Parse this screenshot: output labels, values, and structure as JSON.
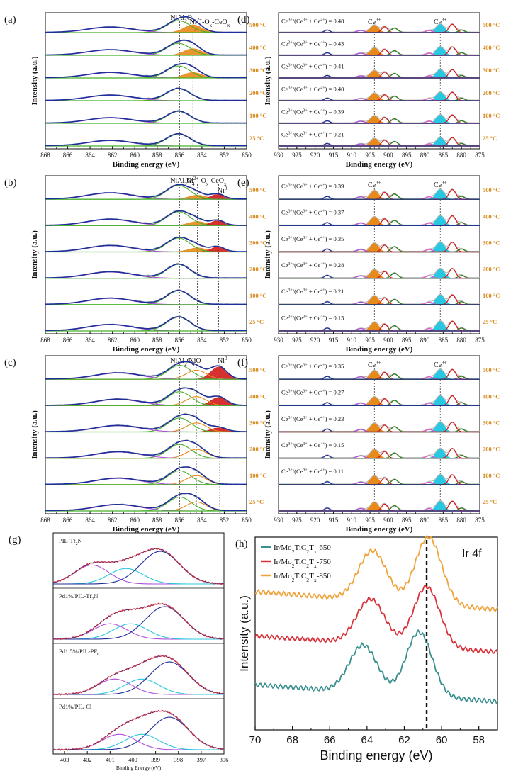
{
  "colors": {
    "blue": "#1f2f9a",
    "purple": "#b04ed8",
    "green": "#46b02a",
    "orange": "#e88a1a",
    "red": "#d21a1a",
    "cyan": "#2ac7e0",
    "gray": "#b8b8b8",
    "darkgreen": "#2e7d1e",
    "pink": "#e356c9",
    "tempLabel": "#d98b1e",
    "teal": "#3a8f8f",
    "crimson": "#d8343c",
    "amber": "#f0a33a"
  },
  "chart_data": [
    {
      "id": "a",
      "type": "line",
      "panel_label": "(a)",
      "xlabel": "Binding energy (eV)",
      "ylabel": "Intensity (a.u.)",
      "xlim": [
        868,
        850
      ],
      "xticks": [
        "868",
        "866",
        "864",
        "862",
        "860",
        "858",
        "856",
        "854",
        "852",
        "850"
      ],
      "annotations": [
        "NiAl2O4",
        "Ni2+-Ox-CeOx"
      ],
      "ref_lines": [
        856.0,
        854.8
      ],
      "series": [
        {
          "name": "500 °C",
          "peaks": [
            856.1,
            854.8,
            862.2
          ]
        },
        {
          "name": "400 °C",
          "peaks": [
            856.1,
            854.8,
            862.2
          ]
        },
        {
          "name": "300 °C",
          "peaks": [
            856.1,
            854.8,
            862.2
          ]
        },
        {
          "name": "200 °C",
          "peaks": [
            856.1,
            862.2
          ]
        },
        {
          "name": "100 °C",
          "peaks": [
            856.1,
            862.2
          ]
        },
        {
          "name": "25 °C",
          "peaks": [
            856.1,
            862.2
          ]
        }
      ]
    },
    {
      "id": "b",
      "type": "line",
      "panel_label": "(b)",
      "xlabel": "Binding energy (eV)",
      "ylabel": "Intensity (a.u.)",
      "xlim": [
        868,
        850
      ],
      "xticks": [
        "868",
        "866",
        "864",
        "862",
        "860",
        "858",
        "856",
        "854",
        "852",
        "850"
      ],
      "annotations": [
        "NiAl2O4",
        "Ni2+-Ox-CeOx",
        "Ni0"
      ],
      "ref_lines": [
        856.0,
        854.4,
        852.5
      ],
      "series": [
        {
          "name": "500 °C",
          "peaks": [
            856.1,
            854.4,
            852.6,
            862.2
          ]
        },
        {
          "name": "400 °C",
          "peaks": [
            856.1,
            854.4,
            852.6,
            862.2
          ]
        },
        {
          "name": "300 °C",
          "peaks": [
            856.1,
            854.4,
            852.6,
            862.2
          ]
        },
        {
          "name": "200 °C",
          "peaks": [
            856.1,
            862.2
          ]
        },
        {
          "name": "100 °C",
          "peaks": [
            856.1,
            862.2
          ]
        },
        {
          "name": "25 °C",
          "peaks": [
            856.1,
            862.2
          ]
        }
      ]
    },
    {
      "id": "c",
      "type": "line",
      "panel_label": "(c)",
      "xlabel": "Binding energy (eV)",
      "ylabel": "Intensity (a.u.)",
      "xlim": [
        868,
        850
      ],
      "xticks": [
        "868",
        "866",
        "864",
        "862",
        "860",
        "858",
        "856",
        "854",
        "852",
        "850"
      ],
      "annotations": [
        "NiAl2O4",
        "NiO",
        "Ni0"
      ],
      "ref_lines": [
        856.0,
        854.5,
        852.4
      ],
      "series": [
        {
          "name": "500 °C",
          "peaks": [
            856.0,
            854.5,
            852.5,
            861.5
          ]
        },
        {
          "name": "400 °C",
          "peaks": [
            856.0,
            854.5,
            852.5,
            861.5
          ]
        },
        {
          "name": "300 °C",
          "peaks": [
            856.0,
            854.5,
            852.5,
            861.5
          ]
        },
        {
          "name": "200 °C",
          "peaks": [
            856.0,
            854.5,
            861.5
          ]
        },
        {
          "name": "100 °C",
          "peaks": [
            856.0,
            854.5,
            861.5
          ]
        },
        {
          "name": "25 °C",
          "peaks": [
            856.0,
            854.5,
            861.5
          ]
        }
      ]
    },
    {
      "id": "d",
      "type": "line",
      "panel_label": "(d)",
      "xlabel": "Binding energy (eV)",
      "ylabel": "Intensity (a.u.)",
      "xlim": [
        930,
        875
      ],
      "xticks": [
        "930",
        "925",
        "920",
        "915",
        "910",
        "905",
        "900",
        "895",
        "890",
        "885",
        "880",
        "875"
      ],
      "annotations": [
        "Ce3+",
        "Ce3+"
      ],
      "ref_lines": [
        903.8,
        885.8
      ],
      "ratio_prefix": "Ce3+/(Ce3+ + Ce4+) = ",
      "series": [
        {
          "name": "500 °C",
          "ratio": "0.48"
        },
        {
          "name": "400 °C",
          "ratio": "0.43"
        },
        {
          "name": "300 °C",
          "ratio": "0.41"
        },
        {
          "name": "200 °C",
          "ratio": "0.40"
        },
        {
          "name": "100 °C",
          "ratio": "0.39"
        },
        {
          "name": "25 °C",
          "ratio": "0.21"
        }
      ]
    },
    {
      "id": "e",
      "type": "line",
      "panel_label": "(e)",
      "xlabel": "Binding energy (eV)",
      "ylabel": "Intensity (a.u.)",
      "xlim": [
        930,
        875
      ],
      "xticks": [
        "930",
        "925",
        "920",
        "915",
        "910",
        "905",
        "900",
        "895",
        "890",
        "885",
        "880",
        "875"
      ],
      "annotations": [
        "Ce3+",
        "Ce3+"
      ],
      "ref_lines": [
        903.8,
        885.8
      ],
      "ratio_prefix": "Ce3+/(Ce3+ + Ce4+) = ",
      "series": [
        {
          "name": "500 °C",
          "ratio": "0.39"
        },
        {
          "name": "400 °C",
          "ratio": "0.37"
        },
        {
          "name": "300 °C",
          "ratio": "0.35"
        },
        {
          "name": "200 °C",
          "ratio": "0.28"
        },
        {
          "name": "100 °C",
          "ratio": "0.21"
        },
        {
          "name": "25 °C",
          "ratio": "0.15"
        }
      ]
    },
    {
      "id": "f",
      "type": "line",
      "panel_label": "(f)",
      "xlabel": "Binding energy (eV)",
      "ylabel": "Intensity (a.u.)",
      "xlim": [
        930,
        875
      ],
      "xticks": [
        "930",
        "925",
        "920",
        "915",
        "910",
        "905",
        "900",
        "895",
        "890",
        "885",
        "880",
        "875"
      ],
      "annotations": [
        "Ce3+",
        "Ce3+"
      ],
      "ref_lines": [
        903.8,
        885.8
      ],
      "ratio_prefix": "Ce3+/(Ce3+ + Ce4+) = ",
      "series": [
        {
          "name": "500 °C",
          "ratio": "0.35"
        },
        {
          "name": "400 °C",
          "ratio": "0.27"
        },
        {
          "name": "300 °C",
          "ratio": "0.23"
        },
        {
          "name": "200 °C",
          "ratio": "0.15"
        },
        {
          "name": "100 °C",
          "ratio": "0.11"
        },
        {
          "name": "25 °C",
          "ratio": ""
        }
      ]
    },
    {
      "id": "g",
      "type": "line",
      "panel_label": "(g)",
      "xlabel": "Binding Energy (eV)",
      "xlim": [
        403.5,
        396
      ],
      "xticks": [
        "403",
        "402",
        "401",
        "400",
        "399",
        "398",
        "397",
        "396"
      ],
      "series": [
        {
          "name": "PIL-Tf2N",
          "peaks": [
            401.8,
            400.3,
            398.8
          ]
        },
        {
          "name": "Pd1%/PIL-Tf2N",
          "peaks": [
            401.0,
            400.1,
            398.6
          ]
        },
        {
          "name": "Pd1.5%/PIL-PF6",
          "peaks": [
            400.8,
            399.6,
            398.4
          ]
        },
        {
          "name": "Pd1%/PIL-Cl",
          "peaks": [
            400.6,
            399.6,
            398.4
          ]
        }
      ]
    },
    {
      "id": "h",
      "type": "line",
      "panel_label": "(h)",
      "title": "Ir 4f",
      "xlabel": "Binding energy (eV)",
      "ylabel": "Intensity (a.u.)",
      "xlim": [
        70,
        57
      ],
      "xticks": [
        "70",
        "68",
        "66",
        "64",
        "62",
        "60",
        "58"
      ],
      "ref_line": 60.8,
      "series": [
        {
          "name": "Ir/Mo2TiC2Tx-650",
          "peaks": [
            64.2,
            61.2
          ]
        },
        {
          "name": "Ir/Mo2TiC2Tx-750",
          "peaks": [
            63.8,
            60.8
          ]
        },
        {
          "name": "Ir/Mo2TiC2Tx-850",
          "peaks": [
            63.7,
            60.7
          ]
        }
      ]
    }
  ]
}
